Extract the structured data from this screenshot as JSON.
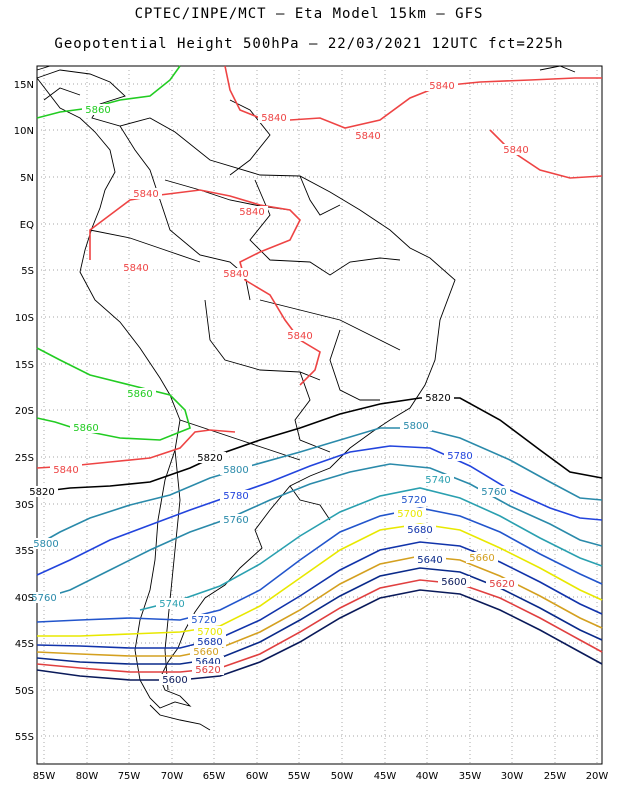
{
  "title_line1": "CPTEC/INPE/MCT –  Eta Model 15km – GFS",
  "title_line2": "Geopotential Height 500hPa – 22/03/2021 12UTC fct=225h",
  "lat_labels": [
    "15N",
    "10N",
    "5N",
    "EQ",
    "5S",
    "10S",
    "15S",
    "20S",
    "25S",
    "30S",
    "35S",
    "40S",
    "45S",
    "50S",
    "55S"
  ],
  "lon_labels": [
    "85W",
    "80W",
    "75W",
    "70W",
    "65W",
    "60W",
    "55W",
    "50W",
    "45W",
    "40W",
    "35W",
    "30W",
    "25W",
    "20W"
  ],
  "contours": [
    {
      "level": "5860",
      "color": "#22cc22",
      "labels": [
        "5860",
        "5860",
        "5860"
      ]
    },
    {
      "level": "5840",
      "color": "#ee4444",
      "labels": [
        "5840",
        "5840",
        "5840",
        "5840",
        "5840",
        "5840",
        "5840",
        "5840",
        "5840",
        "5840"
      ]
    },
    {
      "level": "5820",
      "color": "#000000",
      "labels": [
        "5820",
        "5820",
        "5820"
      ]
    },
    {
      "level": "5800",
      "color": "#2a8aaa",
      "labels": [
        "5800",
        "5800",
        "5800"
      ]
    },
    {
      "level": "5780",
      "color": "#2244dd",
      "labels": [
        "5780",
        "5780"
      ]
    },
    {
      "level": "5760",
      "color": "#2a8aaa",
      "labels": [
        "5760",
        "5760",
        "5760"
      ]
    },
    {
      "level": "5740",
      "color": "#2aa0b0",
      "labels": [
        "5740",
        "5740"
      ]
    },
    {
      "level": "5720",
      "color": "#2255cc",
      "labels": [
        "5720",
        "5720"
      ]
    },
    {
      "level": "5700",
      "color": "#e8e800",
      "labels": [
        "5700",
        "5700"
      ]
    },
    {
      "level": "5680",
      "color": "#1133aa",
      "labels": [
        "5680",
        "5680"
      ]
    },
    {
      "level": "5660",
      "color": "#d4a020",
      "labels": [
        "5660",
        "5660"
      ]
    },
    {
      "level": "5640",
      "color": "#0a2a8a",
      "labels": [
        "5640",
        "5640"
      ]
    },
    {
      "level": "5620",
      "color": "#e04040",
      "labels": [
        "5620",
        "5620"
      ]
    },
    {
      "level": "5600",
      "color": "#0a1a5a",
      "labels": [
        "5600",
        "5600"
      ]
    }
  ]
}
